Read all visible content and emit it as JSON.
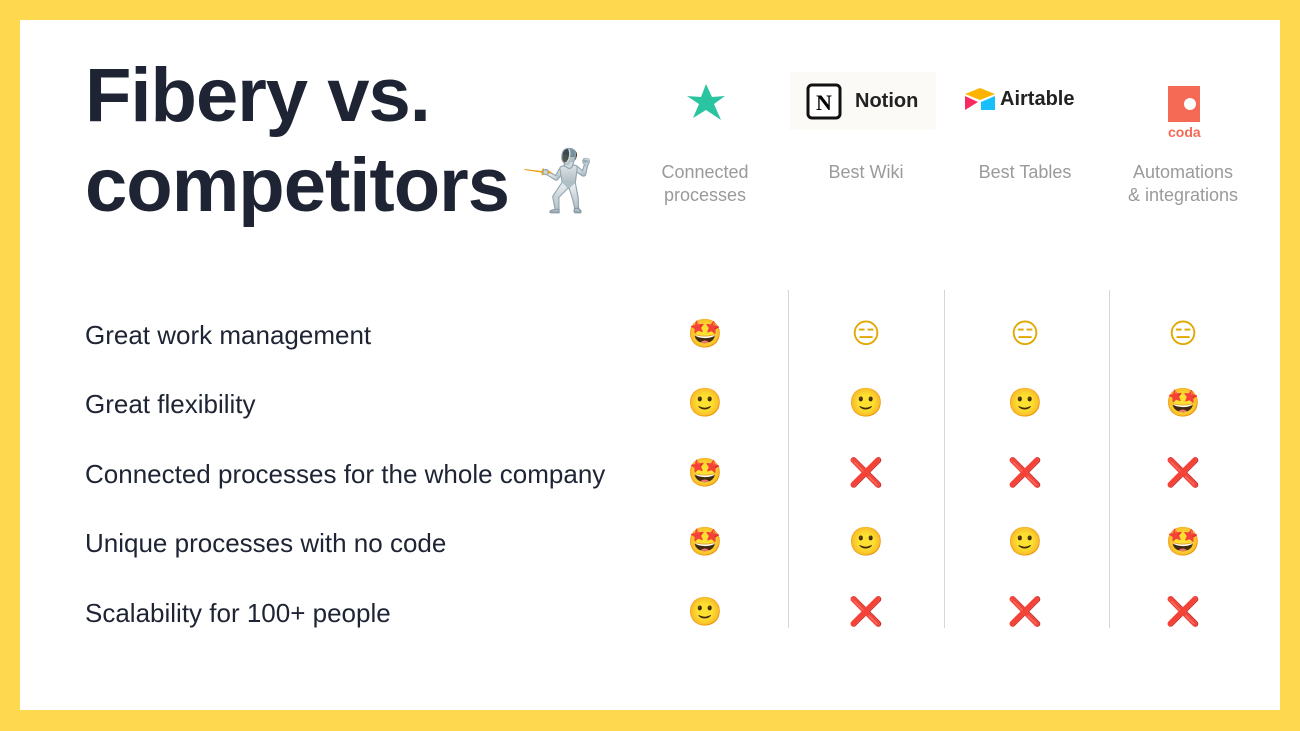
{
  "header": {
    "title_lines": [
      "Fibery vs.",
      "competitors"
    ],
    "title_emoji": "🤺"
  },
  "columns": [
    {
      "caption_lines": [
        "Connected",
        "processes"
      ]
    },
    {
      "logo_text": "Notion",
      "caption_lines": [
        "Best Wiki"
      ]
    },
    {
      "logo_text": "Airtable",
      "caption_lines": [
        "Best Tables"
      ]
    },
    {
      "logo_text": "coda",
      "caption_lines": [
        "Automations",
        "& integrations"
      ]
    }
  ],
  "rows": [
    {
      "label": "Great work management",
      "cells": [
        "🤩",
        "😑",
        "😑",
        "😑"
      ]
    },
    {
      "label": "Great flexibility",
      "cells": [
        "🙂",
        "🙂",
        "🙂",
        "🤩"
      ]
    },
    {
      "label": "Connected processes for the whole company",
      "cells": [
        "🤩",
        "❌",
        "❌",
        "❌"
      ]
    },
    {
      "label": "Unique processes with no code",
      "cells": [
        "🤩",
        "🙂",
        "🙂",
        "🤩"
      ]
    },
    {
      "label": "Scalability for 100+ people",
      "cells": [
        "🙂",
        "❌",
        "❌",
        "❌"
      ]
    }
  ]
}
